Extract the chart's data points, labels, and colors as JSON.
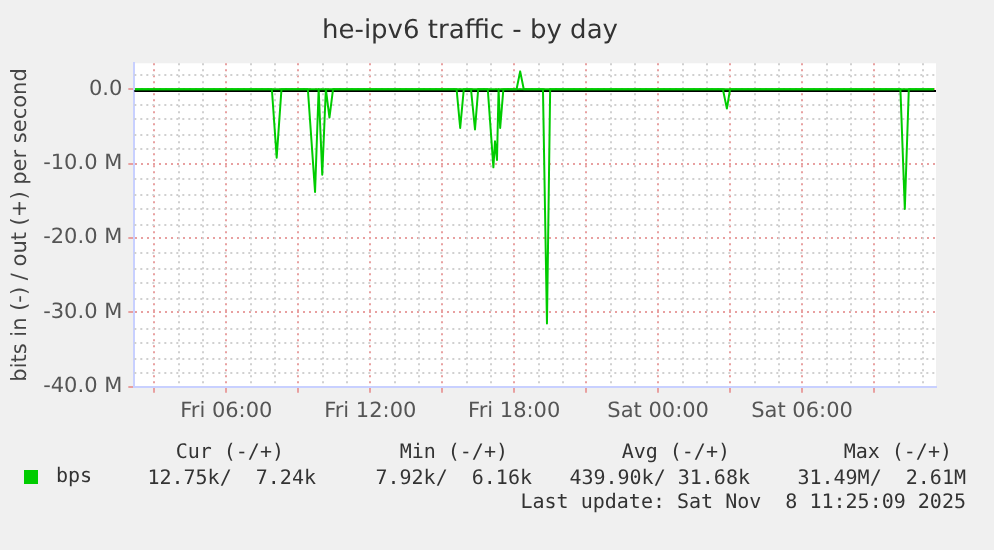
{
  "chart_data": {
    "type": "line",
    "title": "he-ipv6 traffic - by day",
    "ylabel": "bits in (-) / out (+) per second",
    "xlim": [
      "2025-11-07T02:10",
      "2025-11-08T11:35"
    ],
    "ylim": [
      -40,
      3.5
    ],
    "xticks": [
      {
        "value": "2025-11-07T03:00",
        "label": null
      },
      {
        "value": "2025-11-07T06:00",
        "label": "Fri 06:00"
      },
      {
        "value": "2025-11-07T09:00",
        "label": null
      },
      {
        "value": "2025-11-07T12:00",
        "label": "Fri 12:00"
      },
      {
        "value": "2025-11-07T15:00",
        "label": null
      },
      {
        "value": "2025-11-07T18:00",
        "label": "Fri 18:00"
      },
      {
        "value": "2025-11-07T21:00",
        "label": null
      },
      {
        "value": "2025-11-08T00:00",
        "label": "Sat 00:00"
      },
      {
        "value": "2025-11-08T03:00",
        "label": null
      },
      {
        "value": "2025-11-08T06:00",
        "label": "Sat 06:00"
      },
      {
        "value": "2025-11-08T09:00",
        "label": null
      }
    ],
    "yticks": [
      {
        "value": -40,
        "label": "-40.0 M"
      },
      {
        "value": -30,
        "label": "-30.0 M"
      },
      {
        "value": -20,
        "label": "-20.0 M"
      },
      {
        "value": -10,
        "label": "-10.0 M"
      },
      {
        "value": 0,
        "label": "0.0"
      }
    ],
    "series": [
      {
        "name": "bps",
        "color": "#00cc00",
        "x": [
          "2025-11-07T02:12",
          "2025-11-07T07:54",
          "2025-11-07T08:06",
          "2025-11-07T08:18",
          "2025-11-07T09:24",
          "2025-11-07T09:42",
          "2025-11-07T09:51",
          "2025-11-07T10:00",
          "2025-11-07T10:09",
          "2025-11-07T10:18",
          "2025-11-07T10:27",
          "2025-11-07T15:36",
          "2025-11-07T15:45",
          "2025-11-07T15:54",
          "2025-11-07T16:12",
          "2025-11-07T16:22",
          "2025-11-07T16:30",
          "2025-11-07T16:54",
          "2025-11-07T17:08",
          "2025-11-07T17:12",
          "2025-11-07T17:17",
          "2025-11-07T17:21",
          "2025-11-07T17:25",
          "2025-11-07T17:33",
          "2025-11-07T19:12",
          "2025-11-07T19:22",
          "2025-11-07T19:30",
          "2025-11-08T02:42",
          "2025-11-08T02:52",
          "2025-11-08T03:00",
          "2025-11-08T10:06",
          "2025-11-08T10:17",
          "2025-11-08T10:27",
          "2025-11-08T11:30"
        ],
        "values": [
          0,
          0,
          -9.2,
          0,
          0,
          -13.8,
          0,
          -11.5,
          0,
          -3.8,
          0,
          0,
          -5.2,
          0,
          0,
          -5.4,
          0,
          0,
          -10.5,
          -7,
          -9.5,
          0,
          -5.2,
          0,
          0,
          -31.5,
          0,
          0,
          -2.6,
          0,
          0,
          -16.1,
          0,
          0
        ]
      },
      {
        "color": "#00cc00",
        "x": [
          "2025-11-07T02:12",
          "2025-11-07T18:06",
          "2025-11-07T18:15",
          "2025-11-07T18:24",
          "2025-11-08T11:30"
        ],
        "values": [
          0,
          0,
          2.4,
          0,
          0
        ]
      }
    ],
    "ref_lines": [
      {
        "axis": "y",
        "value": 0,
        "color": "#000000"
      }
    ],
    "grid": true,
    "legend": "bottom",
    "annotations": [
      "Cur (-/+)",
      "Min (-/+)",
      "Avg (-/+)",
      "Max (-/+)",
      "12.75k/  7.24k",
      "7.92k/  6.16k",
      "439.90k/ 31.68k",
      "31.49M/  2.61M",
      "Last update: Sat Nov  8 11:25:09 2025"
    ]
  }
}
